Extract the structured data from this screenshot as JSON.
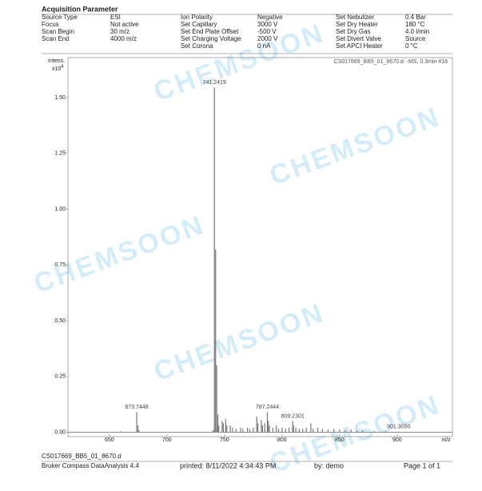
{
  "header": {
    "title": "Acquisition Parameter",
    "parameters": [
      [
        [
          "Source Type",
          "ESI"
        ],
        [
          "Focus",
          "Not active"
        ],
        [
          "Scan Begin",
          "30 m/z"
        ],
        [
          "Scan End",
          "4000 m/z"
        ]
      ],
      [
        [
          "Ion Polarity",
          "Negative"
        ],
        [
          "Set Capillary",
          "3000 V"
        ],
        [
          "Set End Plate Offset",
          "-500 V"
        ],
        [
          "Set Charging Voltage",
          "2000 V"
        ],
        [
          "Set Corona",
          "0 nA"
        ]
      ],
      [
        [
          "Set Nebulizer",
          "0.4 Bar"
        ],
        [
          "Set Dry Heater",
          "180 °C"
        ],
        [
          "Set Dry Gas",
          "4.0 l/min"
        ],
        [
          "Set Divert Valve",
          "Source"
        ],
        [
          "Set APCI Heater",
          "0 °C"
        ]
      ]
    ]
  },
  "chart_data": {
    "type": "stick",
    "subtitle": "CS017669_BB5_01_8670.d: -MS, 0.3min #18",
    "ylabel": "Intens.",
    "yscale_label": "x10",
    "yscale_exponent": "4",
    "xlabel": "m/z",
    "color": "#777777",
    "x": [
      620,
      660,
      674.75,
      675.7,
      740.2,
      742.24,
      743.24,
      744.2,
      745,
      748,
      749,
      751,
      752,
      755,
      757,
      760,
      764,
      766,
      770,
      772,
      775,
      778,
      779,
      782,
      783,
      785,
      788,
      789,
      792,
      795,
      797,
      800,
      803,
      806,
      810,
      812,
      815,
      818,
      821,
      825,
      827,
      831,
      835,
      840,
      845,
      850,
      855,
      860,
      865,
      870,
      880,
      890
    ],
    "values": [
      0.003,
      0.004,
      0.03,
      0.01,
      0.01,
      0.82,
      0.3,
      0.08,
      0.03,
      0.05,
      0.04,
      0.06,
      0.03,
      0.03,
      0.02,
      0.015,
      0.02,
      0.015,
      0.02,
      0.015,
      0.02,
      0.07,
      0.04,
      0.055,
      0.03,
      0.04,
      0.05,
      0.03,
      0.02,
      0.03,
      0.015,
      0.02,
      0.015,
      0.02,
      0.03,
      0.02,
      0.015,
      0.015,
      0.02,
      0.04,
      0.015,
      0.02,
      0.015,
      0.012,
      0.015,
      0.012,
      0.01,
      0.012,
      0.008,
      0.008,
      0.006,
      0.005
    ],
    "annotations": [
      {
        "x": 673.7448,
        "y": 0.09,
        "label": "673.7448"
      },
      {
        "x": 741.2419,
        "y": 1.546,
        "label": "741.2419"
      },
      {
        "x": 787.2444,
        "y": 0.09,
        "label": "787.2444"
      },
      {
        "x": 809.2301,
        "y": 0.05,
        "label": "809.2301"
      },
      {
        "x": 901.305,
        "y": 0.003,
        "label": "901.3050"
      }
    ],
    "xlim": [
      614,
      948
    ],
    "xticks": [
      650,
      700,
      750,
      800,
      850,
      900
    ],
    "ylim": [
      -0.02,
      1.68
    ],
    "yticks": [
      {
        "value": 0,
        "label": "0.00"
      },
      0.25,
      {
        "value": 0.5,
        "label": "0.50"
      },
      0.75,
      {
        "value": 1,
        "label": "1.00"
      },
      1.25,
      {
        "value": 1.5,
        "label": "1.50"
      }
    ]
  },
  "watermark": "CHEMSOON",
  "footer": {
    "file": "CS017669_BB5_01_8670.d",
    "software": "Bruker Compass DataAnalysis 4.4",
    "printed": "printed:   8/11/2022 4:34:43 PM",
    "by": "by:   demo",
    "page": "Page 1 of 1"
  }
}
